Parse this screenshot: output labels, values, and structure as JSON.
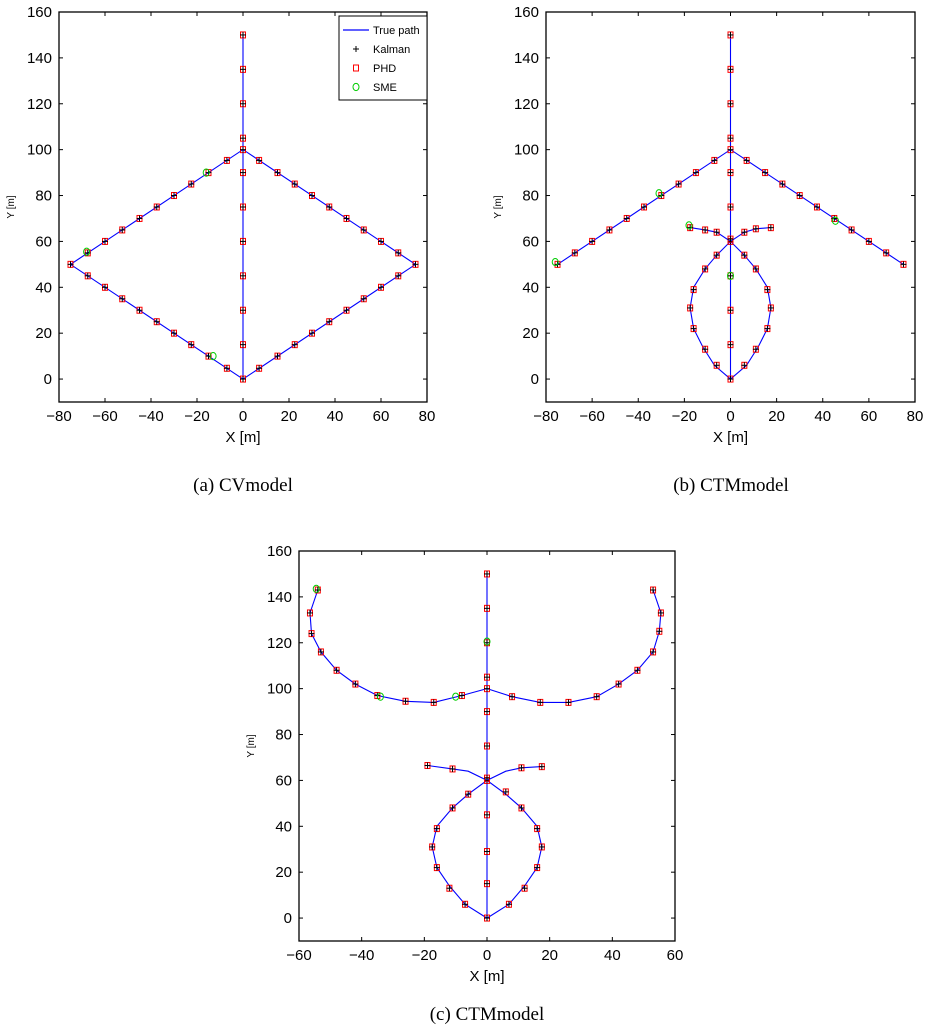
{
  "colors": {
    "true_path": "#0000ff",
    "kalman": "#000000",
    "phd": "#ff0000",
    "sme": "#00cc00",
    "axes": "#000000"
  },
  "chart_data": [
    {
      "type": "line",
      "caption": "(a) CVmodel",
      "xlabel": "X [m]",
      "ylabel": "Y [m]",
      "xlim": [
        -80,
        80
      ],
      "ylim": [
        -10,
        160
      ],
      "xticks": [
        -80,
        -60,
        -40,
        -20,
        0,
        20,
        40,
        60,
        80
      ],
      "yticks": [
        0,
        20,
        40,
        60,
        80,
        100,
        120,
        140,
        160
      ],
      "grid": false,
      "legend": {
        "position": "top-right",
        "entries": [
          "True path",
          "Kalman",
          "PHD",
          "SME"
        ]
      },
      "true_path": [
        [
          [
            0,
            0
          ],
          [
            0,
            150
          ]
        ],
        [
          [
            0,
            0
          ],
          [
            -75,
            50
          ],
          [
            0,
            100
          ],
          [
            75,
            50
          ],
          [
            0,
            0
          ]
        ]
      ],
      "estimates": [
        [
          0,
          0
        ],
        [
          0,
          15
        ],
        [
          0,
          30
        ],
        [
          0,
          45
        ],
        [
          0,
          60
        ],
        [
          0,
          75
        ],
        [
          0,
          90
        ],
        [
          0,
          100
        ],
        [
          0,
          105
        ],
        [
          0,
          120
        ],
        [
          0,
          135
        ],
        [
          0,
          150
        ],
        [
          -7,
          4.7
        ],
        [
          -15,
          10
        ],
        [
          -22.5,
          15
        ],
        [
          -30,
          20
        ],
        [
          -37.5,
          25
        ],
        [
          -45,
          30
        ],
        [
          -52.5,
          35
        ],
        [
          -60,
          40
        ],
        [
          -67.5,
          45
        ],
        [
          -75,
          50
        ],
        [
          -67.5,
          55
        ],
        [
          -60,
          60
        ],
        [
          -52.5,
          65
        ],
        [
          -45,
          70
        ],
        [
          -37.5,
          75
        ],
        [
          -30,
          80
        ],
        [
          -22.5,
          85
        ],
        [
          -15,
          90
        ],
        [
          -7,
          95.3
        ],
        [
          7,
          95.3
        ],
        [
          15,
          90
        ],
        [
          22.5,
          85
        ],
        [
          30,
          80
        ],
        [
          37.5,
          75
        ],
        [
          45,
          70
        ],
        [
          52.5,
          65
        ],
        [
          60,
          60
        ],
        [
          67.5,
          55
        ],
        [
          75,
          50
        ],
        [
          67.5,
          45
        ],
        [
          60,
          40
        ],
        [
          52.5,
          35
        ],
        [
          45,
          30
        ],
        [
          37.5,
          25
        ],
        [
          30,
          20
        ],
        [
          22.5,
          15
        ],
        [
          15,
          10
        ],
        [
          7,
          4.7
        ]
      ],
      "sme_offsets": [
        [
          [
            -16,
            90
          ],
          [
            -14,
            90
          ]
        ],
        [
          [
            -13,
            10
          ],
          [
            -14,
            10
          ]
        ],
        [
          [
            -68,
            55.5
          ],
          [
            -67.5,
            55
          ]
        ]
      ]
    },
    {
      "type": "line",
      "caption": "(b) CTMmodel",
      "xlabel": "X [m]",
      "ylabel": "Y [m]",
      "xlim": [
        -80,
        80
      ],
      "ylim": [
        -10,
        160
      ],
      "xticks": [
        -80,
        -60,
        -40,
        -20,
        0,
        20,
        40,
        60,
        80
      ],
      "yticks": [
        0,
        20,
        40,
        60,
        80,
        100,
        120,
        140,
        160
      ],
      "grid": false,
      "true_path": [
        [
          [
            0,
            0
          ],
          [
            0,
            150
          ]
        ],
        [
          [
            -75,
            50
          ],
          [
            0,
            100
          ],
          [
            75,
            50
          ]
        ],
        [
          [
            0,
            0
          ],
          [
            -7,
            6
          ],
          [
            -12,
            14
          ],
          [
            -16,
            22
          ],
          [
            -17.5,
            31
          ],
          [
            -16,
            40
          ],
          [
            -11,
            48
          ],
          [
            -6,
            54
          ],
          [
            0,
            60
          ],
          [
            6,
            64
          ],
          [
            11,
            65.5
          ],
          [
            17.5,
            66
          ]
        ],
        [
          [
            0,
            0
          ],
          [
            7,
            6
          ],
          [
            12,
            14
          ],
          [
            16,
            22
          ],
          [
            17.5,
            31
          ],
          [
            16,
            40
          ],
          [
            11,
            48
          ],
          [
            6,
            54
          ],
          [
            0,
            60
          ],
          [
            -6,
            64
          ],
          [
            -11,
            65
          ],
          [
            -17.5,
            66
          ]
        ]
      ],
      "estimates": [
        [
          0,
          0
        ],
        [
          0,
          15
        ],
        [
          0,
          30
        ],
        [
          0,
          45
        ],
        [
          0,
          60
        ],
        [
          0,
          61
        ],
        [
          0,
          75
        ],
        [
          0,
          90
        ],
        [
          0,
          100
        ],
        [
          0,
          105
        ],
        [
          0,
          120
        ],
        [
          0,
          135
        ],
        [
          0,
          150
        ],
        [
          -75,
          50
        ],
        [
          -67.5,
          55
        ],
        [
          -60,
          60
        ],
        [
          -52.5,
          65
        ],
        [
          -45,
          70
        ],
        [
          -37.5,
          75
        ],
        [
          -30,
          80
        ],
        [
          -22.5,
          85
        ],
        [
          -15,
          90
        ],
        [
          -7,
          95.3
        ],
        [
          7,
          95.3
        ],
        [
          15,
          90
        ],
        [
          22.5,
          85
        ],
        [
          30,
          80
        ],
        [
          37.5,
          75
        ],
        [
          45,
          70
        ],
        [
          52.5,
          65
        ],
        [
          60,
          60
        ],
        [
          67.5,
          55
        ],
        [
          75,
          50
        ],
        [
          -6,
          6
        ],
        [
          -11,
          13
        ],
        [
          -16,
          22
        ],
        [
          -17.5,
          31
        ],
        [
          -16,
          39
        ],
        [
          -11,
          48
        ],
        [
          -6,
          54
        ],
        [
          6,
          6
        ],
        [
          11,
          13
        ],
        [
          16,
          22
        ],
        [
          17.5,
          31
        ],
        [
          16,
          39
        ],
        [
          11,
          48
        ],
        [
          6,
          54
        ],
        [
          -17.5,
          66
        ],
        [
          -11,
          65
        ],
        [
          -6,
          64
        ],
        [
          6,
          64
        ],
        [
          11,
          65.5
        ],
        [
          17.5,
          66
        ]
      ],
      "sme_offsets": [
        [
          [
            -76,
            51
          ],
          [
            -75,
            50
          ]
        ],
        [
          [
            -18,
            67
          ],
          [
            -17.5,
            66
          ]
        ],
        [
          [
            -31,
            81
          ],
          [
            -30,
            80
          ]
        ],
        [
          [
            45.5,
            69
          ],
          [
            45,
            70
          ]
        ],
        [
          [
            0,
            45
          ],
          [
            0,
            45
          ]
        ]
      ]
    },
    {
      "type": "line",
      "caption": "(c) CTMmodel",
      "xlabel": "X [m]",
      "ylabel": "Y [m]",
      "xlim": [
        -60,
        60
      ],
      "ylim": [
        -10,
        160
      ],
      "xticks": [
        -60,
        -40,
        -20,
        0,
        20,
        40,
        60
      ],
      "yticks": [
        0,
        20,
        40,
        60,
        80,
        100,
        120,
        140,
        160
      ],
      "grid": false,
      "true_path": [
        [
          [
            0,
            0
          ],
          [
            0,
            150
          ]
        ],
        [
          [
            0,
            100
          ],
          [
            -8,
            97
          ],
          [
            -17,
            94
          ],
          [
            -26,
            94.5
          ],
          [
            -35,
            97
          ],
          [
            -42,
            102
          ],
          [
            -48,
            108
          ],
          [
            -53,
            116
          ],
          [
            -56,
            124
          ],
          [
            -56.5,
            133
          ],
          [
            -54,
            143
          ]
        ],
        [
          [
            0,
            100
          ],
          [
            8,
            96.5
          ],
          [
            17,
            94
          ],
          [
            26,
            94
          ],
          [
            35,
            96.5
          ],
          [
            42,
            102
          ],
          [
            48,
            108
          ],
          [
            53,
            116
          ],
          [
            55,
            125
          ],
          [
            55.5,
            133
          ],
          [
            53,
            143
          ]
        ],
        [
          [
            0,
            0
          ],
          [
            -7,
            6
          ],
          [
            -12,
            14
          ],
          [
            -16,
            22
          ],
          [
            -17.5,
            31
          ],
          [
            -16,
            40
          ],
          [
            -11,
            48
          ],
          [
            -6,
            54
          ],
          [
            0,
            60
          ],
          [
            6,
            64
          ],
          [
            11,
            65.5
          ],
          [
            17.5,
            66
          ]
        ],
        [
          [
            0,
            0
          ],
          [
            7,
            6
          ],
          [
            12,
            14
          ],
          [
            16,
            22
          ],
          [
            17.5,
            31
          ],
          [
            16,
            40
          ],
          [
            11,
            48
          ],
          [
            6,
            54
          ],
          [
            0,
            60
          ],
          [
            -6,
            64
          ],
          [
            -11,
            65
          ],
          [
            -19,
            66.5
          ]
        ]
      ],
      "estimates": [
        [
          0,
          0
        ],
        [
          0,
          15
        ],
        [
          0,
          29
        ],
        [
          0,
          45
        ],
        [
          0,
          60
        ],
        [
          0,
          61
        ],
        [
          0,
          75
        ],
        [
          0,
          90
        ],
        [
          0,
          100
        ],
        [
          0,
          105
        ],
        [
          0,
          120
        ],
        [
          0,
          135
        ],
        [
          0,
          150
        ],
        [
          -8,
          97
        ],
        [
          -17,
          94
        ],
        [
          -26,
          94.5
        ],
        [
          -35,
          97
        ],
        [
          -42,
          102
        ],
        [
          -48,
          108
        ],
        [
          -53,
          116
        ],
        [
          -56,
          124
        ],
        [
          -56.5,
          133
        ],
        [
          -54,
          143
        ],
        [
          8,
          96.5
        ],
        [
          17,
          94
        ],
        [
          26,
          94
        ],
        [
          35,
          96.5
        ],
        [
          42,
          102
        ],
        [
          48,
          108
        ],
        [
          53,
          116
        ],
        [
          55,
          125
        ],
        [
          55.5,
          133
        ],
        [
          53,
          143
        ],
        [
          -7,
          6
        ],
        [
          -12,
          13
        ],
        [
          -16,
          22
        ],
        [
          -17.5,
          31
        ],
        [
          -16,
          39
        ],
        [
          -11,
          48
        ],
        [
          -6,
          54
        ],
        [
          7,
          6
        ],
        [
          12,
          13
        ],
        [
          16,
          22
        ],
        [
          17.5,
          31
        ],
        [
          16,
          39
        ],
        [
          11,
          48
        ],
        [
          6,
          55
        ],
        [
          -19,
          66.5
        ],
        [
          -11,
          65
        ],
        [
          11,
          65.5
        ],
        [
          17.5,
          66
        ]
      ],
      "sme_offsets": [
        [
          [
            -54.5,
            143.5
          ],
          [
            -54,
            143
          ]
        ],
        [
          [
            -10,
            96.5
          ],
          [
            -8,
            97
          ]
        ],
        [
          [
            -34,
            96.5
          ],
          [
            -35,
            97
          ]
        ],
        [
          [
            0,
            120.5
          ],
          [
            0,
            120
          ]
        ]
      ]
    }
  ]
}
